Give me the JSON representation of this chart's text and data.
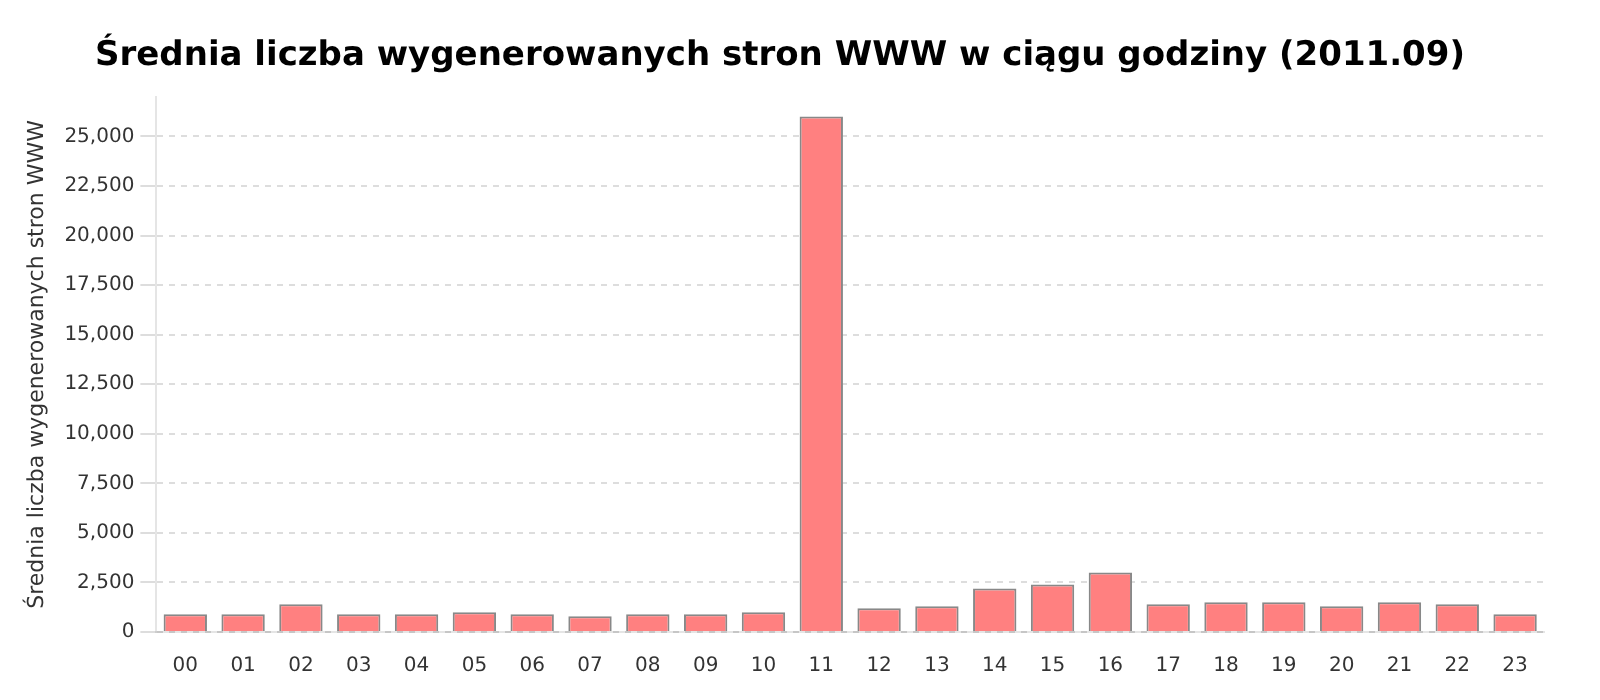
{
  "chart_data": {
    "type": "bar",
    "title": "Średnia liczba wygenerowanych stron WWW w ciągu godziny (2011.09)",
    "ylabel": "Średnia liczba wygenerowanych stron WWW",
    "categories": [
      "00",
      "01",
      "02",
      "03",
      "04",
      "05",
      "06",
      "07",
      "08",
      "09",
      "10",
      "11",
      "12",
      "13",
      "14",
      "15",
      "16",
      "17",
      "18",
      "19",
      "20",
      "21",
      "22",
      "23"
    ],
    "values": [
      900,
      900,
      1400,
      900,
      900,
      1000,
      900,
      800,
      900,
      900,
      1000,
      26000,
      1200,
      1300,
      2200,
      2400,
      3000,
      1400,
      1500,
      1500,
      1300,
      1500,
      1400,
      900
    ],
    "color": "#ff8080",
    "ylim": [
      0,
      27000
    ],
    "yticks": [
      0,
      {
        "value": 2500,
        "label": "2,500"
      },
      {
        "value": 5000,
        "label": "5,000"
      },
      {
        "value": 7500,
        "label": "7,500"
      },
      {
        "value": 10000,
        "label": "10,000"
      },
      {
        "value": 12500,
        "label": "12,500"
      },
      {
        "value": 15000,
        "label": "15,000"
      },
      {
        "value": 17500,
        "label": "17,500"
      },
      {
        "value": 20000,
        "label": "20,000"
      },
      {
        "value": 22500,
        "label": "22,500"
      },
      {
        "value": 25000,
        "label": "25,000"
      }
    ],
    "grid": "y"
  }
}
